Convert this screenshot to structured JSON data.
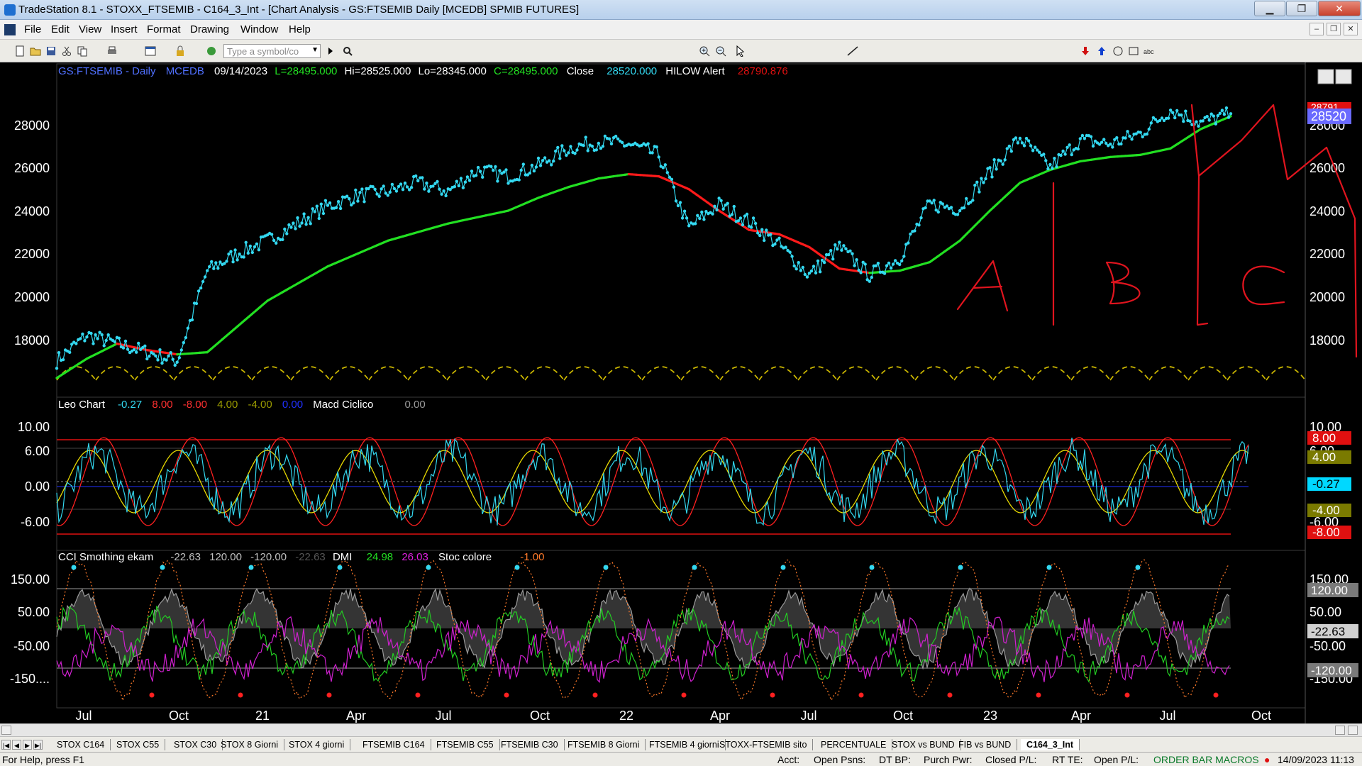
{
  "window": {
    "title": "TradeStation 8.1 - STOXX_FTSEMIB - C164_3_Int - [Chart Analysis - GS:FTSEMIB  Daily  [MCEDB] SPMIB FUTURES]",
    "minimize": "▁",
    "maximize": "❐",
    "close": "✕"
  },
  "menu": {
    "items": [
      "File",
      "Edit",
      "View",
      "Insert",
      "Format",
      "Drawing",
      "Window",
      "Help"
    ],
    "mdi_buttons": [
      "–",
      "❐",
      "✕"
    ]
  },
  "toolbar": {
    "symbol_placeholder": "Type a symbol/co",
    "icons": [
      "new-icon",
      "open-icon",
      "save-icon",
      "cut-icon",
      "copy-icon",
      "paste-icon",
      "print-icon",
      "workspace-icon",
      "lock-icon",
      "format-icon",
      "link-icon"
    ]
  },
  "chart_header": {
    "symbol": "GS:FTSEMIB - Daily",
    "data_source": "MCEDB",
    "date": "09/14/2023",
    "last": "L=28495.000",
    "high": "Hi=28525.000",
    "low": "Lo=28345.000",
    "close_eq": "C=28495.000",
    "close_label": "Close",
    "close_value": "28520.000",
    "hilow_label": "HILOW Alert",
    "hilow_value": "28790.876"
  },
  "colors": {
    "background": "#000000",
    "price_dots": "#33d8f0",
    "ma_up": "#22e022",
    "ma_down": "#ff1a1a",
    "cycle_arcs": "#c8b400",
    "annotation": "#e0141e",
    "macd_fast": "#ff2020",
    "macd_slow": "#e6d800",
    "cci_fill": "#9a9a9a",
    "dmi_plus": "#22cc22",
    "dmi_minus": "#d020d0",
    "stoc": "#ff7a2a"
  },
  "price_axis": {
    "ticks": [
      "28000",
      "26000",
      "24000",
      "22000",
      "20000",
      "18000"
    ],
    "right_ticks": [
      "28000",
      "26000",
      "24000",
      "22000",
      "20000",
      "18000"
    ],
    "last_price_tag": "28520",
    "alert_tag": "28791"
  },
  "annotations": [
    "A",
    "B",
    "C"
  ],
  "panel2": {
    "name": "Leo Chart",
    "v1": "-0.27",
    "v2": "8.00",
    "v3": "-8.00",
    "v4": "4.00",
    "v5": "-4.00",
    "v6": "0.00",
    "name2": "Macd Ciclico",
    "v7": "0.00",
    "ticks": [
      "10.00",
      "6.00",
      "0.00",
      "-6.00"
    ],
    "right_ticks": [
      "10.00",
      "6.00",
      "-6.00"
    ],
    "tags": [
      {
        "text": "8.00",
        "bg": "#e01010",
        "fg": "#ffffff"
      },
      {
        "text": "4.00",
        "bg": "#7a7a00",
        "fg": "#ffffff"
      },
      {
        "text": "-0.27",
        "bg": "#00d8ff",
        "fg": "#000000"
      },
      {
        "text": "-4.00",
        "bg": "#7a7a00",
        "fg": "#ffffff"
      },
      {
        "text": "-8.00",
        "bg": "#e01010",
        "fg": "#ffffff"
      }
    ]
  },
  "panel3": {
    "name": "CCI Smothing ekam",
    "v1": "-22.63",
    "v2": "120.00",
    "v3": "-120.00",
    "v4": "-22.63",
    "dmi_label": "DMI",
    "dmi_plus": "24.98",
    "dmi_minus": "26.03",
    "stoc_label": "Stoc colore",
    "stoc_value": "-1.00",
    "ticks": [
      "150.00",
      "50.00",
      "-50.00",
      "-150...."
    ],
    "right_ticks": [
      "150.00",
      "50.00",
      "-50.00",
      "-150.00"
    ],
    "tags": [
      {
        "text": "120.00",
        "bg": "#7a7a7a",
        "fg": "#ffffff"
      },
      {
        "text": "-22.63",
        "bg": "#d0d0d0",
        "fg": "#000000"
      },
      {
        "text": "-120.00",
        "bg": "#7a7a7a",
        "fg": "#ffffff"
      }
    ]
  },
  "time_axis": [
    "Jul",
    "Oct",
    "21",
    "Apr",
    "Jul",
    "Oct",
    "22",
    "Apr",
    "Jul",
    "Oct",
    "23",
    "Apr",
    "Jul",
    "Oct"
  ],
  "tabs": [
    "STOX C164",
    "STOX C55",
    "STOX  C30",
    "STOX  8 Giorni",
    "STOX 4 giorni",
    "FTSEMIB C164",
    "FTSEMIB C55",
    "FTSEMIB C30",
    "FTSEMIB  8 Giorni",
    "FTSEMIB  4 giorni",
    "STOXX-FTSEMIB sito",
    "PERCENTUALE",
    "STOX vs BUND",
    "FIB vs BUND",
    "C164_3_Int"
  ],
  "status": {
    "help": "For Help, press F1",
    "acct": "Acct:",
    "open_psns": "Open Psns:",
    "dt_bp": "DT BP:",
    "purch_pwr": "Purch Pwr:",
    "closed_pl": "Closed P/L:",
    "rt_te": "RT TE:",
    "open_pl": "Open P/L:",
    "macros": "ORDER BAR  MACROS",
    "datetime": "14/09/2023 11:13"
  },
  "chart_data": [
    {
      "type": "line",
      "title": "GS:FTSEMIB - Daily",
      "ylabel": "",
      "ylim": [
        16200,
        29800
      ],
      "x": [
        "2020-06",
        "2020-07",
        "2020-08",
        "2020-09",
        "2020-10",
        "2020-11",
        "2020-12",
        "2021-01",
        "2021-02",
        "2021-03",
        "2021-04",
        "2021-05",
        "2021-06",
        "2021-07",
        "2021-08",
        "2021-09",
        "2021-10",
        "2021-11",
        "2021-12",
        "2022-01",
        "2022-02",
        "2022-03",
        "2022-04",
        "2022-05",
        "2022-06",
        "2022-07",
        "2022-08",
        "2022-09",
        "2022-10",
        "2022-11",
        "2022-12",
        "2023-01",
        "2023-02",
        "2023-03",
        "2023-04",
        "2023-05",
        "2023-06",
        "2023-07",
        "2023-08",
        "2023-09"
      ],
      "series": [
        {
          "name": "Close",
          "values": [
            17000,
            18200,
            17800,
            17400,
            17000,
            21200,
            22000,
            22600,
            23400,
            24200,
            24700,
            24900,
            25300,
            24900,
            25900,
            25600,
            26100,
            26900,
            27200,
            27100,
            26600,
            23200,
            24300,
            23500,
            22400,
            21000,
            22300,
            21000,
            21800,
            24300,
            24100,
            25800,
            27400,
            26000,
            27300,
            27100,
            27600,
            28700,
            28100,
            28520
          ]
        },
        {
          "name": "",
          "values": [
            16200,
            17100,
            17800,
            17500,
            17300,
            17400,
            18600,
            19800,
            20600,
            21400,
            22000,
            22600,
            23000,
            23400,
            23700,
            24000,
            24600,
            25100,
            25500,
            25700,
            25600,
            25000,
            24000,
            23100,
            22900,
            22300,
            21300,
            21100,
            21200,
            21600,
            22600,
            24000,
            25300,
            25900,
            26300,
            26500,
            26600,
            26900,
            27800,
            28400
          ]
        }
      ]
    }
  ]
}
